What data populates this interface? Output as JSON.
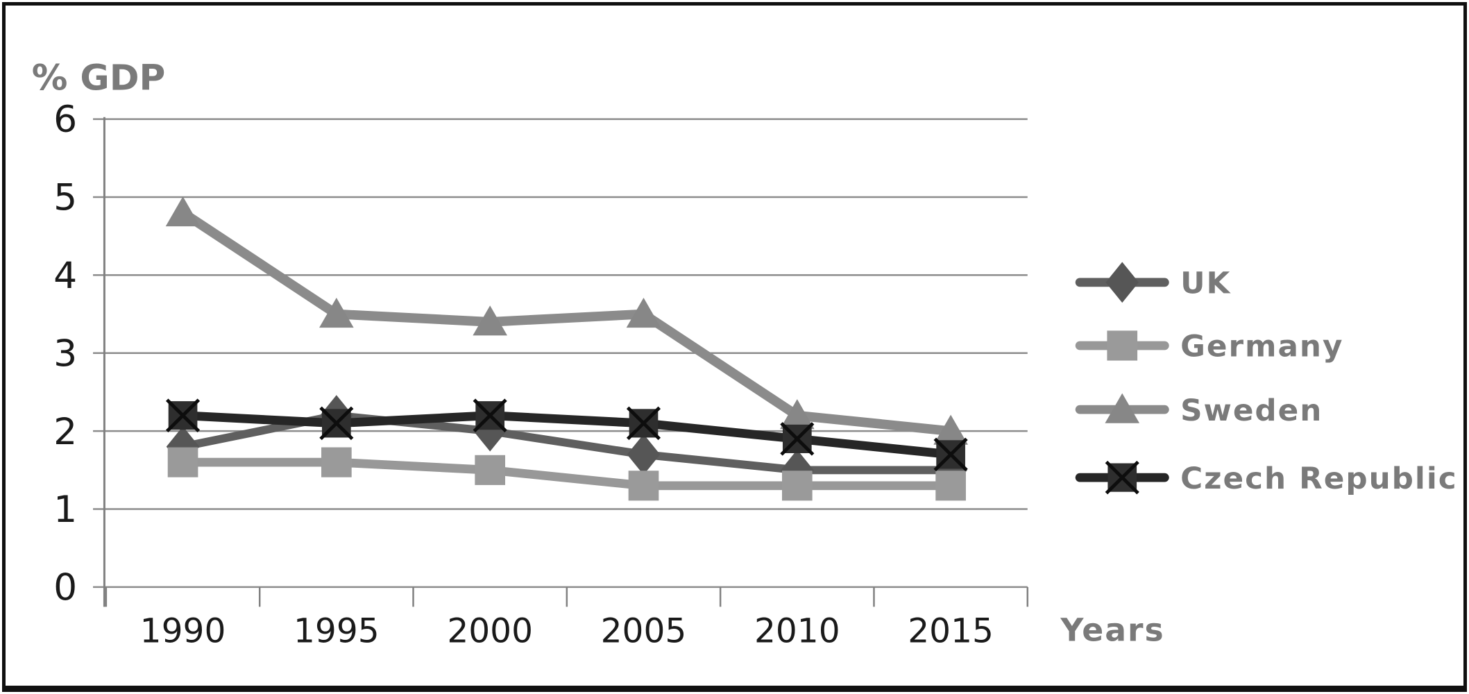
{
  "chart_data": {
    "type": "line",
    "title": "",
    "y_axis_title": "% GDP",
    "x_axis_title": "Years",
    "categories": [
      "1990",
      "1995",
      "2000",
      "2005",
      "2010",
      "2015"
    ],
    "series": [
      {
        "name": "UK",
        "marker": "diamond",
        "color": "#5f5f5f",
        "marker_color": "#565656",
        "values": [
          1.8,
          2.2,
          2.0,
          1.7,
          1.5,
          1.5
        ]
      },
      {
        "name": "Germany",
        "marker": "square",
        "color": "#989898",
        "marker_color": "#9a9a9a",
        "values": [
          1.6,
          1.6,
          1.5,
          1.3,
          1.3,
          1.3
        ]
      },
      {
        "name": "Sweden",
        "marker": "triangle",
        "color": "#8b8b8b",
        "marker_color": "#878787",
        "values": [
          4.8,
          3.5,
          3.4,
          3.5,
          2.2,
          2.0
        ]
      },
      {
        "name": "Czech Republic",
        "marker": "x-square",
        "color": "#262626",
        "marker_color": "#2e2e2e",
        "values": [
          2.2,
          2.1,
          2.2,
          2.1,
          1.9,
          1.7
        ]
      }
    ],
    "ylim": [
      0,
      6
    ],
    "yticks": [
      0,
      1,
      2,
      3,
      4,
      5,
      6
    ],
    "grid": "horizontal",
    "legend_position": "right",
    "colors": {
      "gridline": "#8c8c8c",
      "axis_line": "#808080",
      "tick_label": "#1a1a1a",
      "axis_title": "#7a7a7a",
      "legend_text": "#7a7a7a",
      "background": "#ffffff",
      "frame_border": "#101010"
    }
  }
}
